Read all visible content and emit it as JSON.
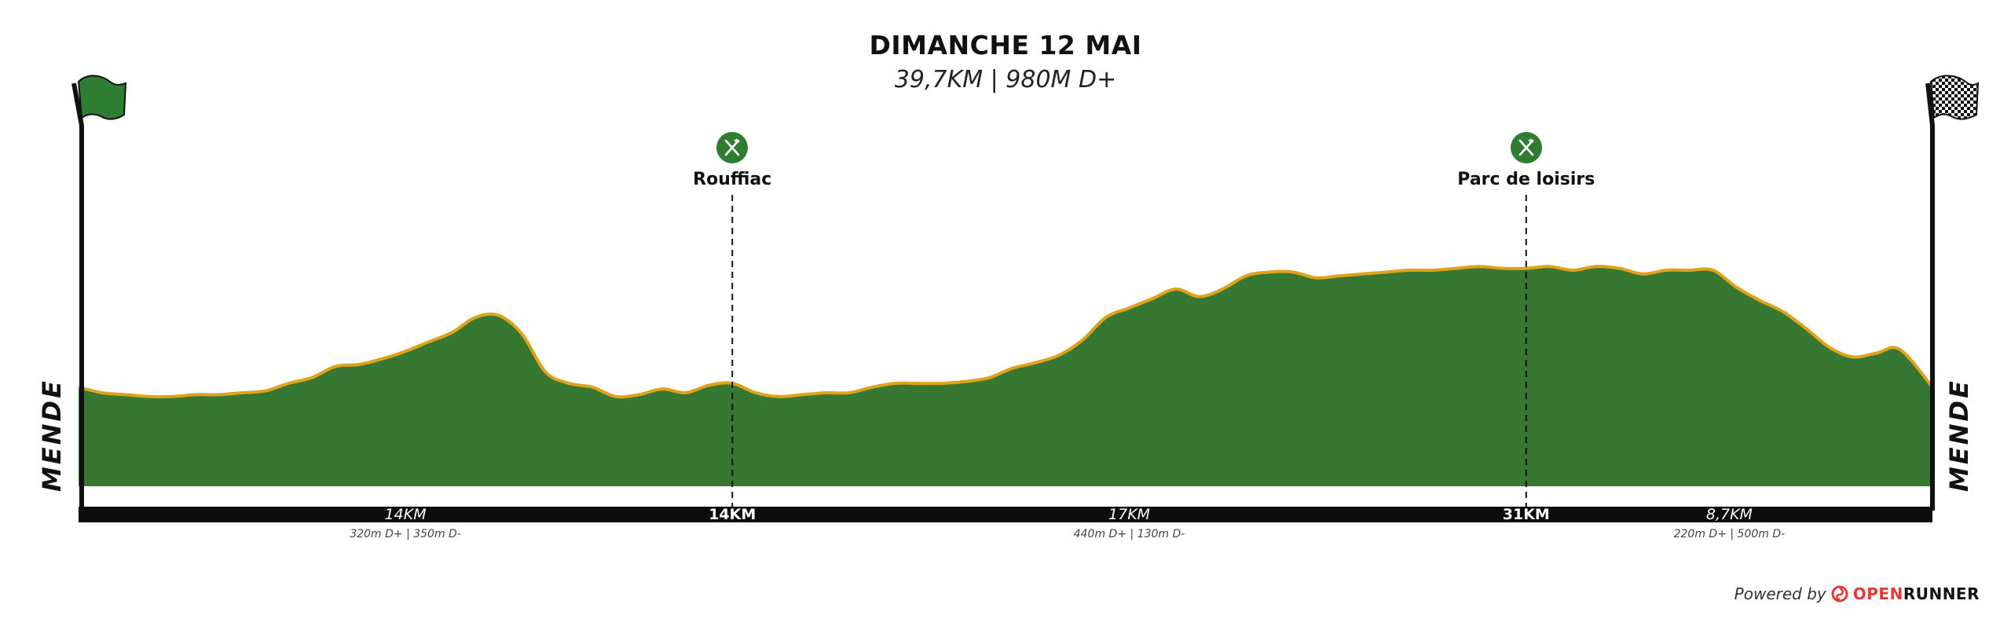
{
  "header": {
    "title": "DIMANCHE 12 MAI",
    "subtitle": "39,7KM | 980M D+"
  },
  "start_label": "MENDE",
  "finish_label": "MENDE",
  "colors": {
    "profile_fill": "#367731",
    "profile_outline": "#e0a21b",
    "axis_bar": "#0d0d0d",
    "start_flag": "#2e7d32",
    "stop_icon": "#2e7d32",
    "brand_red": "#e53935"
  },
  "icons": {
    "start": "green-flag-icon",
    "finish": "checkered-flag-icon",
    "stop": "fork-knife-icon",
    "brand": "openrunner-logo-icon"
  },
  "stops": [
    {
      "name": "Rouffiac",
      "km_label": "14KM",
      "km": 14
    },
    {
      "name": "Parc de loisirs",
      "km_label": "31KM",
      "km": 31
    }
  ],
  "segments": [
    {
      "distance": "14KM",
      "elevation": "320m D+ | 350m D-"
    },
    {
      "distance": "17KM",
      "elevation": "440m D+ | 130m D-"
    },
    {
      "distance": "8,7KM",
      "elevation": "220m D+ | 500m D-"
    }
  ],
  "footer": {
    "powered_by": "Powered by",
    "brand_open": "OPEN",
    "brand_runner": "RUNNER"
  },
  "chart_data": {
    "type": "area",
    "total_km": 39.7,
    "x_km": [
      0,
      0.5,
      1,
      1.5,
      2,
      2.5,
      3,
      3.5,
      4,
      4.5,
      5,
      5.5,
      6,
      6.5,
      7,
      7.5,
      8,
      8.5,
      9,
      9.5,
      10,
      10.5,
      11,
      11.5,
      12,
      12.5,
      13,
      13.5,
      14,
      14.5,
      15,
      15.5,
      16,
      16.5,
      17,
      17.5,
      18,
      18.5,
      19,
      19.5,
      20,
      20.5,
      21,
      21.5,
      22,
      22.5,
      23,
      23.5,
      24,
      24.5,
      25,
      25.5,
      26,
      26.5,
      27,
      27.5,
      28,
      28.5,
      29,
      29.5,
      30,
      30.5,
      31,
      31.5,
      32,
      32.5,
      33,
      33.5,
      34,
      34.5,
      35,
      35.5,
      36,
      36.5,
      37,
      37.5,
      38,
      38.5,
      39,
      39.7
    ],
    "profile_level": [
      0.28,
      0.25,
      0.24,
      0.23,
      0.23,
      0.24,
      0.24,
      0.25,
      0.26,
      0.3,
      0.33,
      0.39,
      0.4,
      0.43,
      0.47,
      0.52,
      0.57,
      0.65,
      0.66,
      0.56,
      0.36,
      0.3,
      0.28,
      0.23,
      0.24,
      0.27,
      0.25,
      0.29,
      0.3,
      0.25,
      0.23,
      0.24,
      0.25,
      0.25,
      0.28,
      0.3,
      0.3,
      0.3,
      0.31,
      0.33,
      0.38,
      0.41,
      0.45,
      0.53,
      0.65,
      0.7,
      0.75,
      0.8,
      0.76,
      0.8,
      0.87,
      0.89,
      0.89,
      0.86,
      0.87,
      0.88,
      0.89,
      0.9,
      0.9,
      0.91,
      0.92,
      0.91,
      0.91,
      0.92,
      0.9,
      0.92,
      0.91,
      0.88,
      0.9,
      0.9,
      0.9,
      0.81,
      0.74,
      0.68,
      0.59,
      0.49,
      0.44,
      0.46,
      0.48,
      0.28
    ]
  }
}
